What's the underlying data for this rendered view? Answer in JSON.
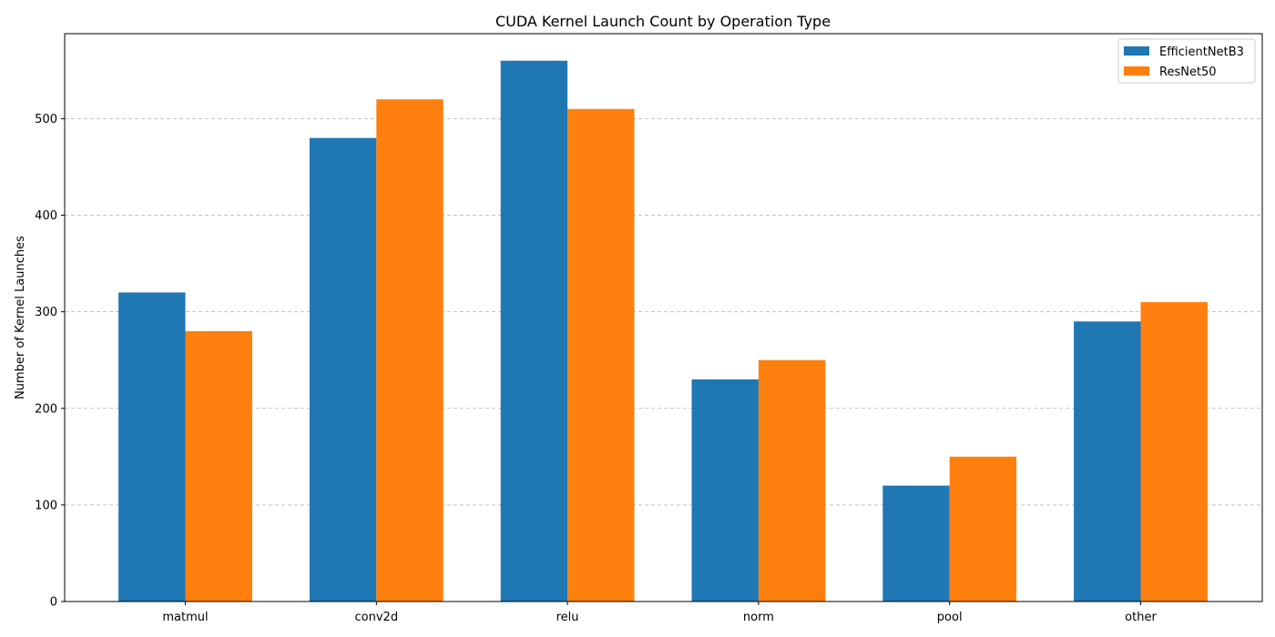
{
  "chart_data": {
    "type": "bar",
    "title": "CUDA Kernel Launch Count by Operation Type",
    "xlabel": "",
    "ylabel": "Number of Kernel Launches",
    "categories": [
      "matmul",
      "conv2d",
      "relu",
      "norm",
      "pool",
      "other"
    ],
    "series": [
      {
        "name": "EfficientNetB3",
        "color": "#1f77b4",
        "values": [
          320,
          480,
          560,
          230,
          120,
          290
        ]
      },
      {
        "name": "ResNet50",
        "color": "#ff7f0e",
        "values": [
          280,
          520,
          510,
          250,
          150,
          310
        ]
      }
    ],
    "ylim": [
      0,
      588
    ],
    "yticks": [
      0,
      100,
      200,
      300,
      400,
      500
    ],
    "grid": "y-dashed",
    "legend_position": "top-right"
  }
}
